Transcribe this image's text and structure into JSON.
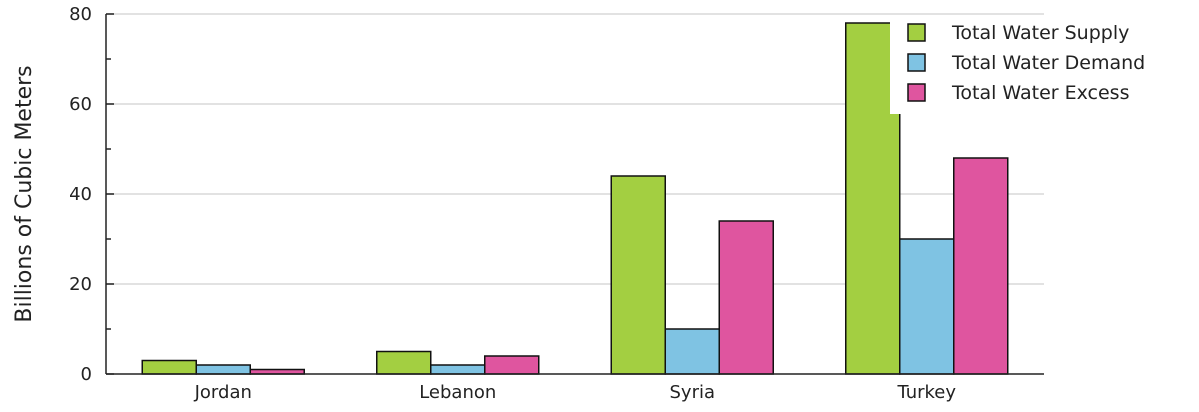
{
  "chart_data": {
    "type": "bar",
    "title": "",
    "xlabel": "",
    "ylabel": "Billions of Cubic Meters",
    "ylim": [
      0,
      80
    ],
    "yticks": [
      0,
      20,
      40,
      60,
      80
    ],
    "grid": true,
    "legend_position": "top-right",
    "categories": [
      "Jordan",
      "Lebanon",
      "Syria",
      "Turkey"
    ],
    "series": [
      {
        "name": "Total Water Supply",
        "color": "#a3cf41",
        "values": [
          3,
          5,
          44,
          78
        ]
      },
      {
        "name": "Total Water Demand",
        "color": "#7fc3e3",
        "values": [
          2,
          2,
          10,
          30
        ]
      },
      {
        "name": "Total Water Excess",
        "color": "#df559f",
        "values": [
          1,
          4,
          34,
          48
        ]
      }
    ]
  }
}
